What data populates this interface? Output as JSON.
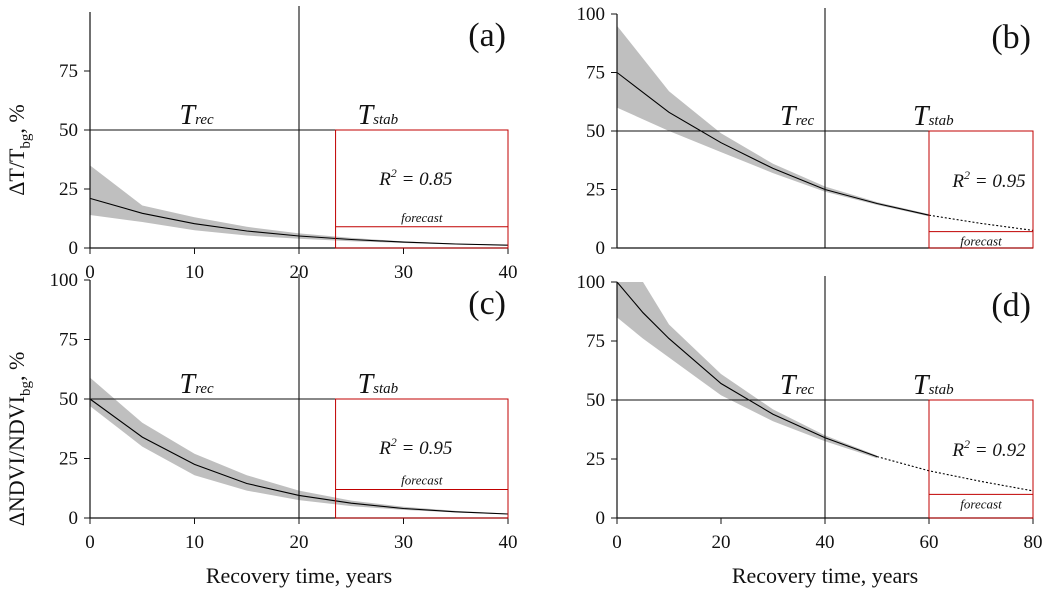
{
  "chart_data": [
    {
      "id": "a",
      "type": "line",
      "panel_label": "(a)",
      "xlim": [
        0,
        40
      ],
      "ylim": [
        0,
        100
      ],
      "xticks": [
        "0",
        "10",
        "20",
        "30",
        "40"
      ],
      "yticks": [
        "0",
        "25",
        "50",
        "75"
      ],
      "ylabel": "ΔT/T",
      "ylabel_sub": "bg",
      "ylabel_unit": ", %",
      "xlabel": "",
      "series": [
        {
          "x": [
            0,
            5,
            10,
            15,
            20,
            25,
            30,
            35,
            40
          ],
          "y": [
            21,
            14.7,
            10.3,
            7.2,
            5.1,
            3.6,
            2.5,
            1.7,
            1.2
          ],
          "y_upper": [
            35,
            18,
            13,
            9,
            6.2,
            4.3,
            2.8,
            1.9,
            1.3
          ],
          "y_lower": [
            14,
            11,
            7.5,
            5.3,
            3.9,
            2.9,
            2.1,
            1.5,
            1.1
          ]
        }
      ],
      "divider_x": 20,
      "level_y": 50,
      "fit_start_x": 23.5,
      "forecast_y": 9,
      "trec": {
        "main": "T",
        "sub": "rec"
      },
      "tstab": {
        "main": "T",
        "sub": "stab"
      },
      "r2": {
        "main": "R",
        "sup": "2",
        "rest": " = 0.85"
      },
      "forecast_label": "forecast"
    },
    {
      "id": "b",
      "type": "line",
      "panel_label": "(b)",
      "xlim": [
        0,
        80
      ],
      "ylim": [
        0,
        100
      ],
      "xticks": [],
      "yticks": [
        "0",
        "25",
        "50",
        "75",
        "100"
      ],
      "series": [
        {
          "x": [
            0,
            10,
            20,
            30,
            40,
            50,
            60
          ],
          "y": [
            75,
            58,
            45,
            34,
            25,
            19,
            14
          ],
          "y_upper": [
            95,
            67,
            49,
            36,
            26.3,
            19.6,
            14.5
          ],
          "y_lower": [
            60,
            50,
            41,
            32,
            24,
            18.4,
            13.5
          ]
        },
        {
          "x": [
            60,
            70,
            80
          ],
          "y": [
            14,
            10.5,
            7.5
          ],
          "style": "dotted"
        }
      ],
      "divider_x": 40,
      "level_y": 50,
      "fit_start_x": 60,
      "forecast_y": 7,
      "trec": {
        "main": "T",
        "sub": "rec"
      },
      "tstab": {
        "main": "T",
        "sub": "stab"
      },
      "r2": {
        "main": "R",
        "sup": "2",
        "rest": " = 0.95"
      },
      "forecast_label": "forecast"
    },
    {
      "id": "c",
      "type": "line",
      "panel_label": "(c)",
      "xlim": [
        0,
        40
      ],
      "ylim": [
        0,
        100
      ],
      "xticks": [
        "0",
        "10",
        "20",
        "30",
        "40"
      ],
      "yticks": [
        "0",
        "25",
        "50",
        "75",
        "100"
      ],
      "ylabel": "ΔNDVI/NDVI",
      "ylabel_sub": "bg",
      "ylabel_unit": ", %",
      "xlabel": "Recovery time, years",
      "series": [
        {
          "x": [
            0,
            5,
            10,
            15,
            20,
            25,
            30,
            35,
            40
          ],
          "y": [
            50,
            34,
            22.5,
            14.5,
            9.5,
            6.2,
            4,
            2.6,
            1.7
          ],
          "y_upper": [
            59,
            40,
            27,
            18,
            11.5,
            7.3,
            4.7,
            3,
            1.9
          ],
          "y_lower": [
            47,
            30,
            18,
            11.5,
            7.5,
            5,
            3.4,
            2.3,
            1.5
          ]
        }
      ],
      "divider_x": 20,
      "level_y": 50,
      "fit_start_x": 23.5,
      "forecast_y": 12,
      "trec": {
        "main": "T",
        "sub": "rec"
      },
      "tstab": {
        "main": "T",
        "sub": "stab"
      },
      "r2": {
        "main": "R",
        "sup": "2",
        "rest": " = 0.95"
      },
      "forecast_label": "forecast"
    },
    {
      "id": "d",
      "type": "line",
      "panel_label": "(d)",
      "xlim": [
        0,
        80
      ],
      "ylim": [
        0,
        100
      ],
      "xticks": [
        "0",
        "20",
        "40",
        "60",
        "80"
      ],
      "yticks": [
        "0",
        "25",
        "50",
        "75",
        "100"
      ],
      "xlabel": "Recovery time, years",
      "series": [
        {
          "x": [
            0,
            5,
            10,
            20,
            30,
            40,
            50
          ],
          "y": [
            100,
            87,
            76,
            57,
            44,
            34,
            26
          ],
          "y_upper": [
            100,
            100,
            82,
            61,
            46,
            35,
            26.5
          ],
          "y_lower": [
            85,
            76,
            68,
            52,
            41,
            32.5,
            25.3
          ]
        },
        {
          "x": [
            50,
            55,
            60,
            70,
            80
          ],
          "y": [
            26,
            23,
            20,
            15.5,
            11.5
          ],
          "style": "dotted"
        }
      ],
      "divider_x": 40,
      "level_y": 50,
      "fit_start_x": 60,
      "forecast_y": 10,
      "trec": {
        "main": "T",
        "sub": "rec"
      },
      "tstab": {
        "main": "T",
        "sub": "stab"
      },
      "r2": {
        "main": "R",
        "sup": "2",
        "rest": " = 0.92"
      },
      "forecast_label": "forecast"
    }
  ],
  "colors": {
    "axis": "#111111",
    "line": "#000000",
    "band": "#bfbfbf",
    "frame": "#c00000"
  }
}
